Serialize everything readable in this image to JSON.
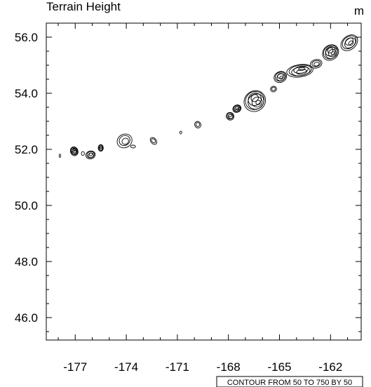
{
  "chart_data": {
    "type": "contour",
    "title": "Terrain Height",
    "units": "m",
    "info_label": "CONTOUR FROM 50 TO 750 BY 50",
    "xlim": [
      -178.7,
      -160.2
    ],
    "ylim": [
      45.2,
      56.5
    ],
    "x_ticks": [
      -177,
      -174,
      -171,
      -168,
      -165,
      -162
    ],
    "x_tick_labels": [
      "-177",
      "-174",
      "-171",
      "-168",
      "-165",
      "-162"
    ],
    "y_ticks": [
      46,
      48,
      50,
      52,
      54,
      56
    ],
    "y_tick_labels": [
      "46.0",
      "48.0",
      "50.0",
      "52.0",
      "54.0",
      "56.0"
    ],
    "contour_levels": {
      "min": 50,
      "max": 750,
      "step": 50
    },
    "grid": false,
    "line_color": "#000000",
    "features": [
      {
        "x": -177.9,
        "y": 51.77,
        "rx": 0.04,
        "ry": 0.06,
        "rings": 1,
        "angle": 0
      },
      {
        "x": -177.06,
        "y": 51.93,
        "rx": 0.22,
        "ry": 0.16,
        "rings": 6,
        "angle": -20
      },
      {
        "x": -176.55,
        "y": 51.85,
        "rx": 0.09,
        "ry": 0.07,
        "rings": 1,
        "angle": 0
      },
      {
        "x": -176.1,
        "y": 51.8,
        "rx": 0.28,
        "ry": 0.14,
        "rings": 4,
        "angle": -15
      },
      {
        "x": -175.5,
        "y": 52.05,
        "rx": 0.15,
        "ry": 0.12,
        "rings": 4,
        "angle": 0
      },
      {
        "x": -174.1,
        "y": 52.3,
        "rx": 0.45,
        "ry": 0.24,
        "rings": 3,
        "angle": -30
      },
      {
        "x": -173.6,
        "y": 52.1,
        "rx": 0.14,
        "ry": 0.05,
        "rings": 1,
        "angle": 0
      },
      {
        "x": -172.4,
        "y": 52.3,
        "rx": 0.16,
        "ry": 0.14,
        "rings": 2,
        "angle": -40
      },
      {
        "x": -170.8,
        "y": 52.6,
        "rx": 0.06,
        "ry": 0.05,
        "rings": 1,
        "angle": 0
      },
      {
        "x": -169.8,
        "y": 52.88,
        "rx": 0.18,
        "ry": 0.12,
        "rings": 2,
        "angle": -30
      },
      {
        "x": -167.9,
        "y": 53.18,
        "rx": 0.22,
        "ry": 0.14,
        "rings": 4,
        "angle": -35
      },
      {
        "x": -167.5,
        "y": 53.45,
        "rx": 0.25,
        "ry": 0.13,
        "rings": 5,
        "angle": -30
      },
      {
        "x": -166.45,
        "y": 53.72,
        "rx": 0.65,
        "ry": 0.36,
        "rings": 7,
        "angle": -35
      },
      {
        "x": -165.35,
        "y": 54.15,
        "rx": 0.18,
        "ry": 0.1,
        "rings": 2,
        "angle": -20
      },
      {
        "x": -164.95,
        "y": 54.58,
        "rx": 0.38,
        "ry": 0.19,
        "rings": 5,
        "angle": -25
      },
      {
        "x": -163.8,
        "y": 54.8,
        "rx": 0.78,
        "ry": 0.22,
        "rings": 6,
        "angle": -8
      },
      {
        "x": -162.85,
        "y": 55.05,
        "rx": 0.35,
        "ry": 0.15,
        "rings": 3,
        "angle": -15
      },
      {
        "x": -162.0,
        "y": 55.45,
        "rx": 0.5,
        "ry": 0.26,
        "rings": 7,
        "angle": -40
      },
      {
        "x": -160.9,
        "y": 55.8,
        "rx": 0.55,
        "ry": 0.24,
        "rings": 5,
        "angle": -40
      }
    ]
  }
}
